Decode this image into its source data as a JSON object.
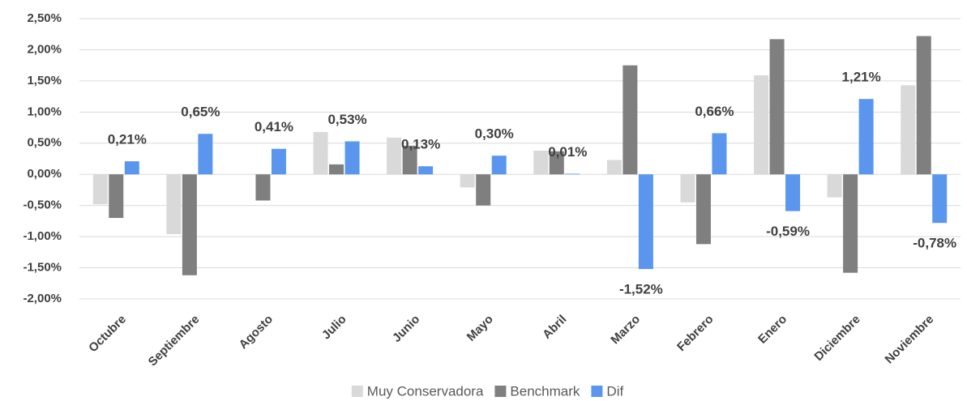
{
  "chart_data": {
    "type": "bar",
    "categories": [
      "Octubre",
      "Septiembre",
      "Agosto",
      "Julio",
      "Junio",
      "Mayo",
      "Abril",
      "Marzo",
      "Febrero",
      "Enero",
      "Diciembre",
      "Noviembre"
    ],
    "series": [
      {
        "name": "Muy Conservadora",
        "color": "#d9d9d9",
        "values": [
          -0.48,
          -0.96,
          0,
          0.68,
          0.59,
          -0.21,
          0.38,
          0.23,
          -0.45,
          1.59,
          -0.37,
          1.43
        ]
      },
      {
        "name": "Benchmark",
        "color": "#7f7f7f",
        "values": [
          -0.7,
          -1.62,
          -0.42,
          0.16,
          0.46,
          -0.5,
          0.37,
          1.75,
          -1.12,
          2.17,
          -1.58,
          2.22
        ]
      },
      {
        "name": "Dif",
        "color": "#5b96ee",
        "values": [
          0.21,
          0.65,
          0.41,
          0.53,
          0.13,
          0.3,
          0.01,
          -1.52,
          0.66,
          -0.59,
          1.21,
          -0.78
        ],
        "value_labels": [
          "0,21%",
          "0,65%",
          "0,41%",
          "0,53%",
          "0,13%",
          "0,30%",
          "0,01%",
          "-1,52%",
          "0,66%",
          "-0,59%",
          "1,21%",
          "-0,78%"
        ]
      }
    ],
    "ylim": [
      -2.0,
      2.5
    ],
    "yticks": [
      {
        "value": -2.0,
        "label": "-2,00%"
      },
      {
        "value": -1.5,
        "label": "-1,50%"
      },
      {
        "value": -1.0,
        "label": "-1,00%"
      },
      {
        "value": -0.5,
        "label": "-0,50%"
      },
      {
        "value": 0,
        "label": "0,00%"
      },
      {
        "value": 0.5,
        "label": "0,50%"
      },
      {
        "value": 1.0,
        "label": "1,00%"
      },
      {
        "value": 1.5,
        "label": "1,50%"
      },
      {
        "value": 2.0,
        "label": "2,00%"
      },
      {
        "value": 2.5,
        "label": "2,50%"
      }
    ],
    "grid": true
  }
}
